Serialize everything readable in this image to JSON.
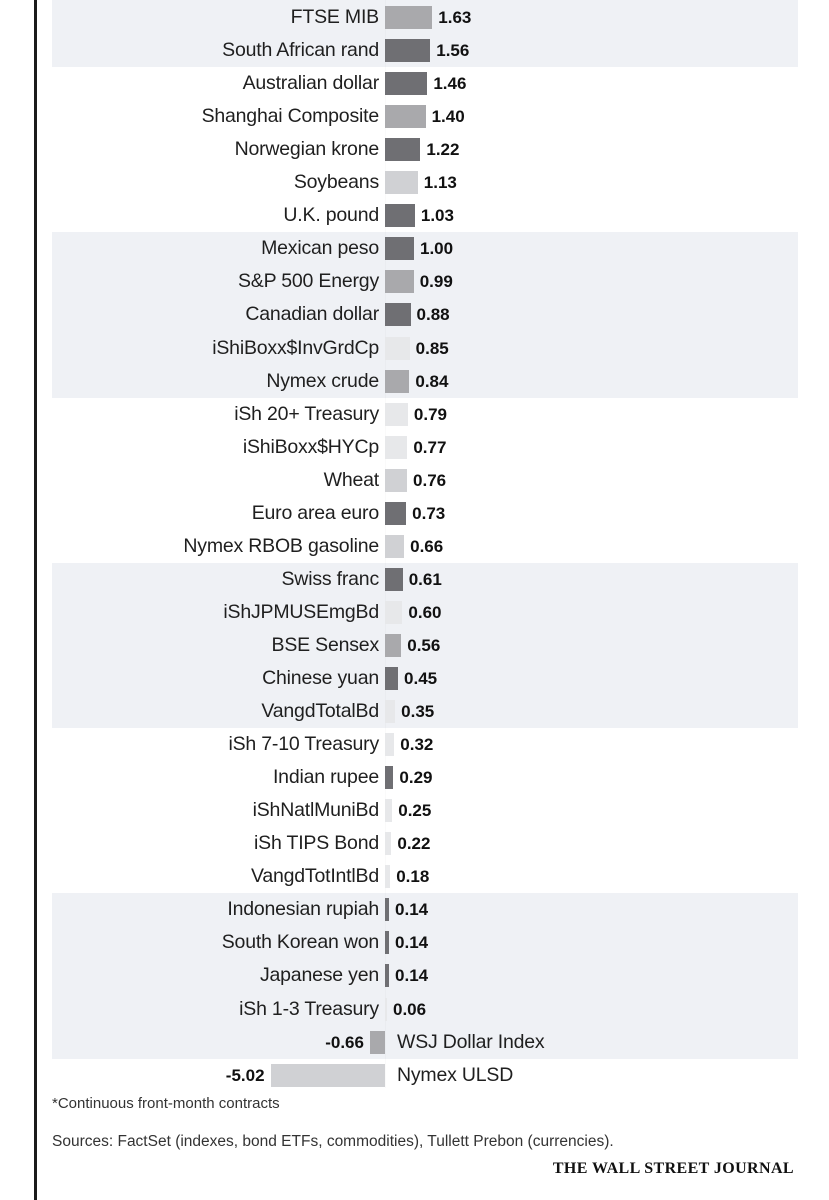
{
  "colors": {
    "dark": "#6f6f73",
    "medium": "#a9a9ac",
    "light": "#d0d1d4",
    "lightest": "#e7e8ea",
    "band": "#eff1f5",
    "text": "#1f1f1f",
    "rule": "#1b1b1b"
  },
  "chart_data": {
    "type": "bar",
    "orientation": "horizontal",
    "categories": [
      "FTSE MIB",
      "South African rand",
      "Australian dollar",
      "Shanghai Composite",
      "Norwegian krone",
      "Soybeans",
      "U.K. pound",
      "Mexican peso",
      "S&P 500 Energy",
      "Canadian dollar",
      "iShiBoxx$InvGrdCp",
      "Nymex crude",
      "iSh 20+ Treasury",
      "iShiBoxx$HYCp",
      "Wheat",
      "Euro area euro",
      "Nymex RBOB gasoline",
      "Swiss franc",
      "iShJPMUSEmgBd",
      "BSE Sensex",
      "Chinese yuan",
      "VangdTotalBd",
      "iSh 7-10 Treasury",
      "Indian rupee",
      "iShNatlMuniBd",
      "iSh TIPS Bond",
      "VangdTotIntlBd",
      "Indonesian rupiah",
      "South Korean won",
      "Japanese yen",
      "iSh 1-3 Treasury",
      "WSJ Dollar Index",
      "Nymex ULSD"
    ],
    "values": [
      1.63,
      1.56,
      1.46,
      1.4,
      1.22,
      1.13,
      1.03,
      1.0,
      0.99,
      0.88,
      0.85,
      0.84,
      0.79,
      0.77,
      0.76,
      0.73,
      0.66,
      0.61,
      0.6,
      0.56,
      0.45,
      0.35,
      0.32,
      0.29,
      0.25,
      0.22,
      0.18,
      0.14,
      0.14,
      0.14,
      0.06,
      -0.66,
      -5.02
    ],
    "value_labels": [
      "1.63",
      "1.56",
      "1.46",
      "1.40",
      "1.22",
      "1.13",
      "1.03",
      "1.00",
      "0.99",
      "0.88",
      "0.85",
      "0.84",
      "0.79",
      "0.77",
      "0.76",
      "0.73",
      "0.66",
      "0.61",
      "0.60",
      "0.56",
      "0.45",
      "0.35",
      "0.32",
      "0.29",
      "0.25",
      "0.22",
      "0.18",
      "0.14",
      "0.14",
      "0.14",
      "0.06",
      "-0.66",
      "-5.02"
    ],
    "bar_shades": [
      "medium",
      "dark",
      "dark",
      "medium",
      "dark",
      "light",
      "dark",
      "dark",
      "medium",
      "dark",
      "lightest",
      "medium",
      "lightest",
      "lightest",
      "light",
      "dark",
      "light",
      "dark",
      "lightest",
      "medium",
      "dark",
      "lightest",
      "lightest",
      "dark",
      "lightest",
      "lightest",
      "lightest",
      "dark",
      "dark",
      "dark",
      "lightest",
      "medium",
      "light"
    ],
    "banded_groups": [
      [
        0,
        1
      ],
      [
        7,
        11
      ],
      [
        17,
        21
      ],
      [
        27,
        31
      ]
    ],
    "grid": false,
    "legend": "none"
  },
  "footnote": "*Continuous front-month contracts",
  "sources": "Sources: FactSet (indexes, bond ETFs, commodities), Tullett Prebon (currencies).",
  "credit": "THE WALL STREET JOURNAL"
}
